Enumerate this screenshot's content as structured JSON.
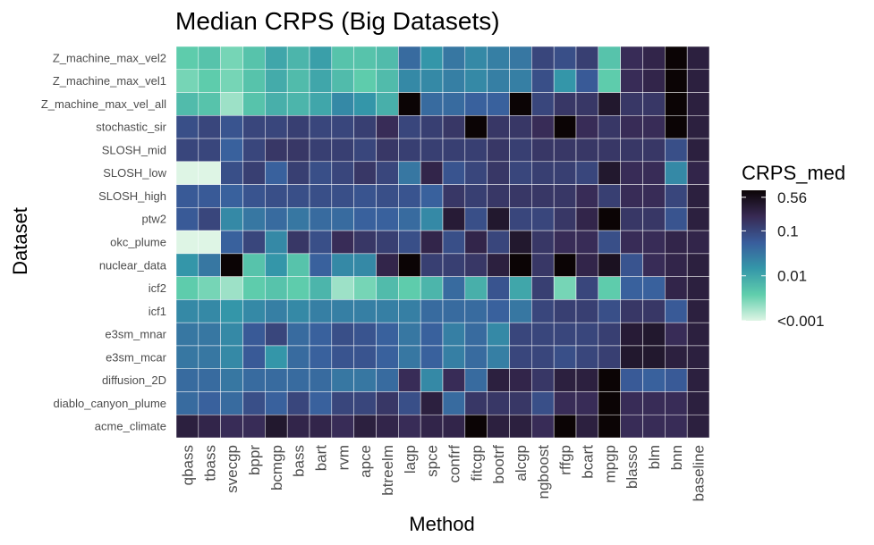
{
  "chart_data": {
    "type": "heatmap",
    "title": "Median CRPS (Big Datasets)",
    "xlabel": "Method",
    "ylabel": "Dataset",
    "x_categories": [
      "qbass",
      "tbass",
      "svecgp",
      "bppr",
      "bcmgp",
      "bass",
      "bart",
      "rvm",
      "apce",
      "btreelm",
      "lagp",
      "spce",
      "confrf",
      "fitcgp",
      "bootrf",
      "alcgp",
      "ngboost",
      "rffgp",
      "bcart",
      "mpgp",
      "blasso",
      "blm",
      "bnn",
      "baseline"
    ],
    "y_categories": [
      "Z_machine_max_vel2",
      "Z_machine_max_vel1",
      "Z_machine_max_vel_all",
      "stochastic_sir",
      "SLOSH_mid",
      "SLOSH_low",
      "SLOSH_high",
      "ptw2",
      "okc_plume",
      "nuclear_data",
      "icf2",
      "icf1",
      "e3sm_mnar",
      "e3sm_mcar",
      "diffusion_2D",
      "diablo_canyon_plume",
      "acme_climate"
    ],
    "scale": "log10",
    "value_range": [
      0.001,
      0.8
    ],
    "values": [
      [
        0.004,
        0.005,
        0.003,
        0.005,
        0.01,
        0.007,
        0.012,
        0.005,
        0.005,
        0.006,
        0.04,
        0.015,
        0.03,
        0.02,
        0.025,
        0.03,
        0.1,
        0.08,
        0.12,
        0.005,
        0.2,
        0.25,
        0.8,
        0.3
      ],
      [
        0.003,
        0.004,
        0.003,
        0.005,
        0.009,
        0.006,
        0.01,
        0.006,
        0.004,
        0.006,
        0.02,
        0.02,
        0.025,
        0.02,
        0.025,
        0.025,
        0.08,
        0.015,
        0.06,
        0.004,
        0.2,
        0.25,
        0.8,
        0.3
      ],
      [
        0.006,
        0.005,
        0.002,
        0.005,
        0.008,
        0.007,
        0.01,
        0.02,
        0.015,
        0.008,
        0.9,
        0.04,
        0.04,
        0.05,
        0.05,
        0.9,
        0.1,
        0.15,
        0.15,
        0.4,
        0.15,
        0.15,
        0.8,
        0.3
      ],
      [
        0.08,
        0.1,
        0.07,
        0.1,
        0.1,
        0.12,
        0.1,
        0.1,
        0.12,
        0.2,
        0.1,
        0.12,
        0.15,
        0.9,
        0.15,
        0.15,
        0.2,
        0.9,
        0.2,
        0.15,
        0.2,
        0.2,
        0.8,
        0.3
      ],
      [
        0.1,
        0.1,
        0.05,
        0.1,
        0.15,
        0.15,
        0.12,
        0.12,
        0.1,
        0.15,
        0.12,
        0.12,
        0.12,
        0.12,
        0.15,
        0.12,
        0.15,
        0.15,
        0.15,
        0.15,
        0.15,
        0.15,
        0.08,
        0.3
      ],
      [
        0.001,
        0.001,
        0.08,
        0.12,
        0.05,
        0.12,
        0.08,
        0.1,
        0.15,
        0.1,
        0.03,
        0.25,
        0.07,
        0.1,
        0.15,
        0.1,
        0.12,
        0.12,
        0.1,
        0.4,
        0.2,
        0.2,
        0.02,
        0.25
      ],
      [
        0.06,
        0.06,
        0.05,
        0.07,
        0.08,
        0.08,
        0.08,
        0.08,
        0.07,
        0.08,
        0.07,
        0.05,
        0.15,
        0.12,
        0.15,
        0.15,
        0.15,
        0.15,
        0.2,
        0.12,
        0.2,
        0.2,
        0.1,
        0.3
      ],
      [
        0.06,
        0.1,
        0.02,
        0.03,
        0.04,
        0.03,
        0.04,
        0.04,
        0.05,
        0.05,
        0.04,
        0.02,
        0.35,
        0.08,
        0.4,
        0.1,
        0.1,
        0.15,
        0.25,
        0.9,
        0.15,
        0.15,
        0.07,
        0.3
      ],
      [
        0.001,
        0.001,
        0.05,
        0.1,
        0.02,
        0.15,
        0.08,
        0.2,
        0.15,
        0.12,
        0.08,
        0.25,
        0.08,
        0.25,
        0.1,
        0.4,
        0.15,
        0.2,
        0.2,
        0.08,
        0.2,
        0.2,
        0.25,
        0.25
      ],
      [
        0.015,
        0.03,
        0.9,
        0.005,
        0.015,
        0.005,
        0.05,
        0.02,
        0.02,
        0.25,
        0.9,
        0.12,
        0.12,
        0.15,
        0.3,
        0.9,
        0.15,
        0.9,
        0.25,
        0.5,
        0.07,
        0.2,
        0.25,
        0.3
      ],
      [
        0.004,
        0.003,
        0.002,
        0.004,
        0.005,
        0.004,
        0.007,
        0.002,
        0.003,
        0.006,
        0.004,
        0.007,
        0.04,
        0.008,
        0.07,
        0.01,
        0.12,
        0.003,
        0.1,
        0.004,
        0.05,
        0.05,
        0.25,
        0.3
      ],
      [
        0.02,
        0.02,
        0.015,
        0.02,
        0.025,
        0.02,
        0.025,
        0.025,
        0.025,
        0.025,
        0.025,
        0.04,
        0.04,
        0.04,
        0.05,
        0.03,
        0.1,
        0.12,
        0.12,
        0.08,
        0.15,
        0.15,
        0.06,
        0.3
      ],
      [
        0.03,
        0.03,
        0.02,
        0.06,
        0.1,
        0.04,
        0.05,
        0.08,
        0.07,
        0.05,
        0.03,
        0.05,
        0.025,
        0.04,
        0.02,
        0.1,
        0.1,
        0.1,
        0.1,
        0.12,
        0.35,
        0.4,
        0.2,
        0.3
      ],
      [
        0.03,
        0.03,
        0.02,
        0.06,
        0.015,
        0.04,
        0.05,
        0.07,
        0.07,
        0.05,
        0.03,
        0.05,
        0.025,
        0.04,
        0.025,
        0.1,
        0.1,
        0.08,
        0.1,
        0.12,
        0.4,
        0.4,
        0.3,
        0.3
      ],
      [
        0.04,
        0.04,
        0.03,
        0.04,
        0.04,
        0.04,
        0.04,
        0.03,
        0.03,
        0.04,
        0.2,
        0.02,
        0.2,
        0.04,
        0.3,
        0.25,
        0.15,
        0.3,
        0.3,
        0.9,
        0.06,
        0.05,
        0.06,
        0.3
      ],
      [
        0.04,
        0.05,
        0.04,
        0.08,
        0.05,
        0.1,
        0.05,
        0.1,
        0.1,
        0.15,
        0.08,
        0.3,
        0.04,
        0.15,
        0.15,
        0.15,
        0.08,
        0.2,
        0.2,
        0.9,
        0.2,
        0.2,
        0.2,
        0.3
      ],
      [
        0.3,
        0.25,
        0.2,
        0.2,
        0.4,
        0.25,
        0.25,
        0.2,
        0.3,
        0.25,
        0.2,
        0.25,
        0.25,
        0.9,
        0.3,
        0.3,
        0.2,
        0.9,
        0.3,
        0.9,
        0.2,
        0.2,
        0.2,
        0.3
      ]
    ],
    "legend": {
      "title": "CRPS_med",
      "ticks": [
        {
          "label": "0.56",
          "value": 0.56
        },
        {
          "label": "0.1",
          "value": 0.1
        },
        {
          "label": "0.01",
          "value": 0.01
        },
        {
          "label": "<0.001",
          "value": 0.001
        }
      ],
      "position": "right"
    },
    "colorscale": [
      "#def5e5",
      "#60ceac",
      "#3497a9",
      "#395d9c",
      "#382a54",
      "#0b0405"
    ],
    "grid_line_color": "#ffffff",
    "panel_background": "#ebebeb"
  }
}
